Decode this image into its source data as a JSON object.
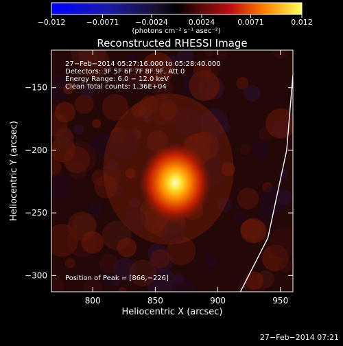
{
  "chart_data": {
    "type": "heatmap",
    "title": "Reconstructed RHESSI Image",
    "xlabel": "Heliocentric X (arcsec)",
    "ylabel": "Heliocentric Y (arcsec)",
    "xlim": [
      767,
      960
    ],
    "ylim": [
      -313,
      -120
    ],
    "xticks": [
      800,
      850,
      900,
      950
    ],
    "yticks": [
      -150,
      -200,
      -250,
      -300
    ],
    "colorbar": {
      "ticks": [
        -0.012,
        -0.0071,
        -0.0024,
        0.0024,
        0.0071,
        0.012
      ],
      "tick_labels": [
        "−0.012",
        "−0.0071",
        "−0.0024",
        "0.0024",
        "0.0071",
        "0.012"
      ],
      "range": [
        -0.012,
        0.012
      ],
      "units": "(photons cm⁻² s⁻¹ asec⁻²)"
    },
    "peak_position": [
      866,
      -226
    ],
    "annotations": [
      "27−Feb−2014 05:27:16.000 to 05:28:40.000",
      "Detectors: 3F 5F 6F 7F 8F 9F, Att 0",
      "Energy Range: 6.0 − 12.0 keV",
      "Clean      Total counts: 1.36E+04",
      "Position of Peak = [866,−226]"
    ],
    "limb_curve": [
      [
        918,
        -313
      ],
      [
        940,
        -270
      ],
      [
        955,
        -200
      ],
      [
        960,
        -140
      ]
    ]
  },
  "timestamp": "27−Feb−2014 07:21",
  "colors": {
    "background": "#000000",
    "text": "#ffffff",
    "limb": "#ffffff"
  }
}
